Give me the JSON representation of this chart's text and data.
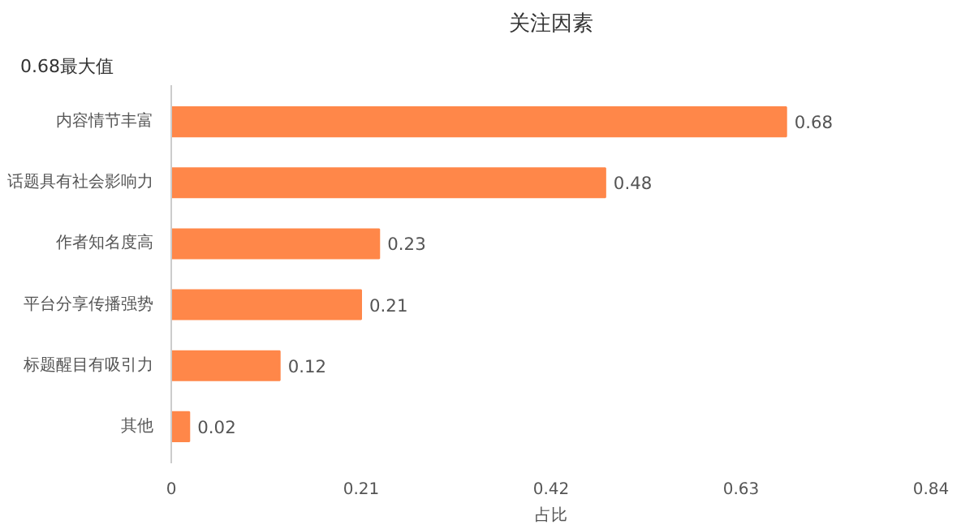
{
  "chart_data": {
    "type": "bar",
    "orientation": "horizontal",
    "title": "关注因素",
    "xlabel": "占比",
    "categories": [
      "内容情节丰富",
      "话题具有社会影响力",
      "作者知名度高",
      "平台分享传播强势",
      "标题醒目有吸引力",
      "其他"
    ],
    "values": [
      0.68,
      0.48,
      0.23,
      0.21,
      0.12,
      0.02
    ],
    "color": "#ff8749",
    "xlim": [
      0,
      0.84
    ],
    "xticks": [
      0,
      0.21,
      0.42,
      0.63,
      0.84
    ],
    "grid": false,
    "data_labels": true,
    "annotations": [
      "0.68最大值"
    ]
  }
}
